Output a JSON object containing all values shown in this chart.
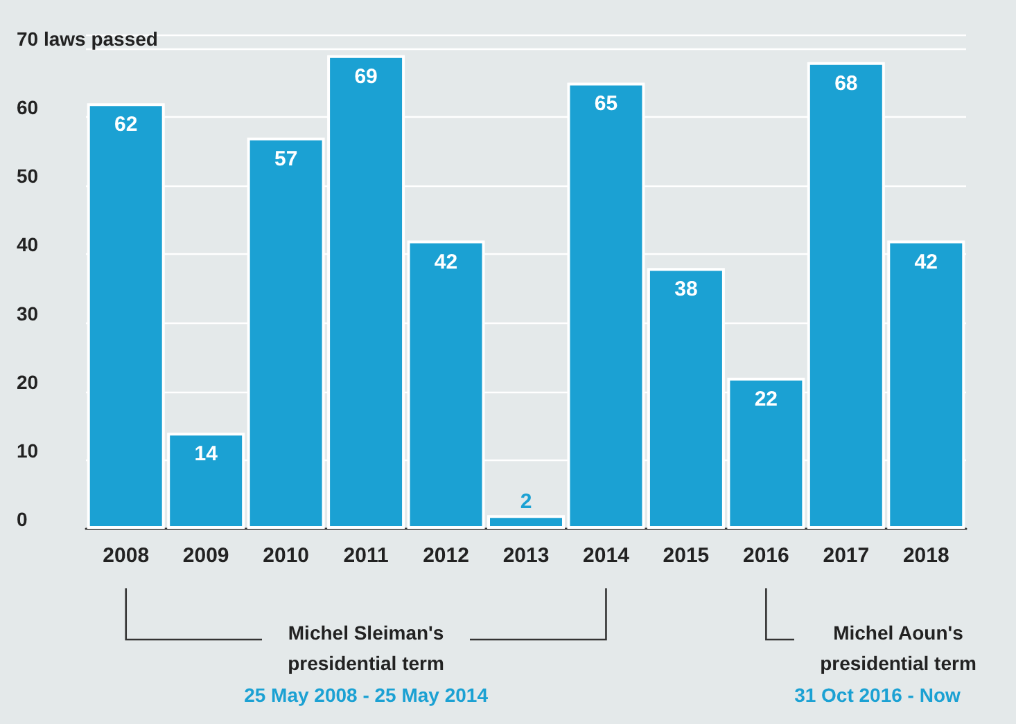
{
  "chart_data": {
    "type": "bar",
    "categories": [
      "2008",
      "2009",
      "2010",
      "2011",
      "2012",
      "2013",
      "2014",
      "2015",
      "2016",
      "2017",
      "2018"
    ],
    "values": [
      62,
      14,
      57,
      69,
      42,
      2,
      65,
      38,
      22,
      68,
      42
    ],
    "color": "#1ba1d3",
    "data_labels": true,
    "ylim": [
      0,
      72
    ],
    "yticks": [
      0,
      10,
      20,
      30,
      40,
      50,
      60,
      {
        "value": 70,
        "label": "70 laws passed"
      }
    ],
    "grid": "y",
    "annotations": [
      "Michel Sleiman's presidential term",
      "25 May 2008 - 25 May 2014",
      "Michel Aoun's presidential term",
      "31 Oct 2016 - Now"
    ]
  }
}
